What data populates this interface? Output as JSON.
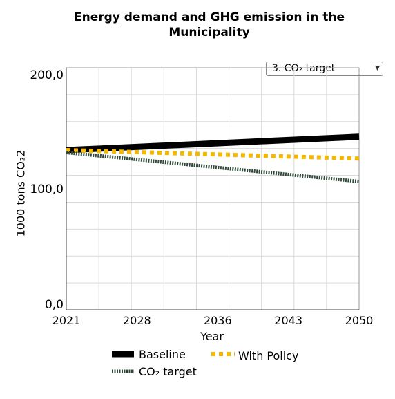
{
  "chart_data": {
    "type": "line",
    "title_line1": "Energy demand and GHG emission in the",
    "title_line2": "Municipality",
    "ylabel": "1000 tons CO₂2",
    "xlabel": "Year",
    "x_ticks": [
      "2021",
      "2028",
      "2036",
      "2043",
      "2050"
    ],
    "y_ticks": [
      "200,0",
      "100,0",
      "0,0"
    ],
    "xlim": [
      2021,
      2050
    ],
    "ylim": [
      0,
      200
    ],
    "grid": true,
    "legend_position": "bottom",
    "x": [
      2021,
      2050
    ],
    "series": [
      {
        "name": "Baseline",
        "values": [
          132,
          143
        ],
        "color": "#000000",
        "style": "solid"
      },
      {
        "name": "With Policy",
        "values": [
          132,
          125
        ],
        "color": "#f5b800",
        "style": "dashed"
      },
      {
        "name": "CO₂ target",
        "values": [
          130,
          106
        ],
        "color": "#2f4a3a",
        "style": "dotted"
      }
    ]
  },
  "dropdown": {
    "selected": "3. CO₂ target"
  }
}
